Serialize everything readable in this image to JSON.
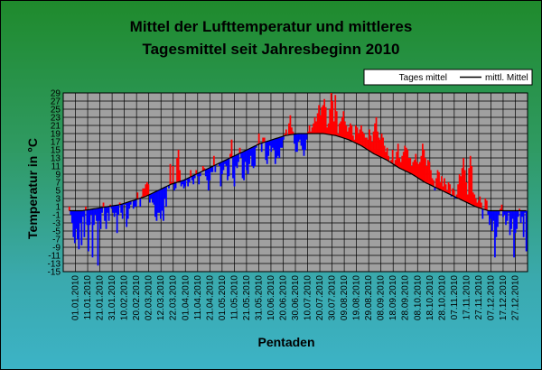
{
  "chart_data": {
    "type": "bar",
    "title_line1": "Mittel der Lufttemperatur und mittleres",
    "title_line2": "Tagesmittel seit Jahresbeginn 2010",
    "xlabel": "Pentaden",
    "ylabel": "Temperatur in °C",
    "ylim": [
      -15,
      29
    ],
    "yticks": [
      -15,
      -13,
      -11,
      -9,
      -7,
      -5,
      -3,
      -1,
      1,
      3,
      5,
      7,
      9,
      11,
      13,
      15,
      17,
      19,
      21,
      23,
      25,
      27,
      29
    ],
    "grid": true,
    "legend_position": "top-right",
    "legend": {
      "series_label": "Tages mittel",
      "mean_label": "mittl. Mittel"
    },
    "colors": {
      "plot_bg": "#a0a0a0",
      "above_mean": "#ff0000",
      "below_mean": "#0000ff",
      "mean_line": "#000000",
      "grid": "#000000"
    },
    "x_tick_labels": [
      "01.01.2010",
      "11.01.2010",
      "21.01.2010",
      "31.01.2010",
      "10.02.2010",
      "20.02.2010",
      "02.03.2010",
      "12.03.2010",
      "22.03.2010",
      "01.04.2010",
      "11.04.2010",
      "21.04.2010",
      "01.05.2010",
      "11.05.2010",
      "21.05.2010",
      "31.05.2010",
      "10.06.2010",
      "20.06.2010",
      "30.06.2010",
      "10.07.2010",
      "20.07.2010",
      "30.07.2010",
      "09.08.2010",
      "19.08.2010",
      "29.08.2010",
      "08.09.2010",
      "18.09.2010",
      "28.09.2010",
      "08.10.2010",
      "18.10.2010",
      "28.10.2010",
      "07.11.2010",
      "17.11.2010",
      "27.11.2010",
      "07.12.2010",
      "17.12.2010",
      "27.12.2010"
    ],
    "mean_curve": [
      0.0,
      0.0,
      0.5,
      1.0,
      1.5,
      2.5,
      3.5,
      5.0,
      6.5,
      7.5,
      9.0,
      10.5,
      12.0,
      13.5,
      15.0,
      16.5,
      17.5,
      18.5,
      19.0,
      19.0,
      19.0,
      18.5,
      17.5,
      16.0,
      14.0,
      12.5,
      10.5,
      9.0,
      7.0,
      5.5,
      4.0,
      2.5,
      1.0,
      0.0,
      0.0,
      0.0,
      0.0
    ],
    "daily_values": [
      1.0,
      -1.0,
      -3.0,
      -6.5,
      -8.0,
      -4.5,
      -7.0,
      -9.5,
      -3.0,
      -8.5,
      -1.5,
      -6.5,
      1.0,
      -3.5,
      -10.0,
      -3.5,
      -1.0,
      -11.5,
      -3.5,
      -1.0,
      -2.5,
      -13.5,
      -2.5,
      -4.5,
      -0.5,
      2.0,
      -2.5,
      -4.5,
      -0.5,
      -2.5,
      1.5,
      0.5,
      -0.5,
      -1.5,
      -0.5,
      -5.5,
      -1.0,
      2.0,
      -0.5,
      -2.0,
      1.5,
      1.5,
      -4.0,
      -2.0,
      0.5,
      1.5,
      2.5,
      0.5,
      1.0,
      1.0,
      4.5,
      3.0,
      1.0,
      3.5,
      5.5,
      5.5,
      6.5,
      7.0,
      6.5,
      2.0,
      3.0,
      2.0,
      1.5,
      -1.5,
      -2.5,
      -0.5,
      -0.5,
      -2.0,
      0.0,
      -2.5,
      3.0,
      1.0,
      6.0,
      5.5,
      11.5,
      7.0,
      11.0,
      5.0,
      5.5,
      13.0,
      15.0,
      10.0,
      6.0,
      6.5,
      5.5,
      6.0,
      7.5,
      6.0,
      7.0,
      10.0,
      7.5,
      6.5,
      8.0,
      10.0,
      8.5,
      6.5,
      8.5,
      9.5,
      11.0,
      10.5,
      8.5,
      7.5,
      5.0,
      7.5,
      9.5,
      9.5,
      13.5,
      9.5,
      11.5,
      11.5,
      11.0,
      6.0,
      9.0,
      10.0,
      11.5,
      11.0,
      7.5,
      8.5,
      14.0,
      17.5,
      8.0,
      6.0,
      11.0,
      10.5,
      12.0,
      15.5,
      13.0,
      8.0,
      7.5,
      12.0,
      10.0,
      9.0,
      11.5,
      13.5,
      11.0,
      10.5,
      11.0,
      15.5,
      16.5,
      19.0,
      16.5,
      14.5,
      18.0,
      18.0,
      12.5,
      11.5,
      13.5,
      16.0,
      14.5,
      15.5,
      15.0,
      11.5,
      13.0,
      13.5,
      13.0,
      15.5,
      15.5,
      17.5,
      19.0,
      20.0,
      18.5,
      21.5,
      23.5,
      20.5,
      19.5,
      16.5,
      14.5,
      14.5,
      17.0,
      17.5,
      16.0,
      15.0,
      13.5,
      15.0,
      17.5,
      19.5,
      21.0,
      19.5,
      20.5,
      21.5,
      23.0,
      22.0,
      24.0,
      26.0,
      23.5,
      25.5,
      26.0,
      27.5,
      25.5,
      20.5,
      21.5,
      25.0,
      29.0,
      27.0,
      22.0,
      28.5,
      24.5,
      19.0,
      21.5,
      22.0,
      23.0,
      24.5,
      22.0,
      21.0,
      19.5,
      20.5,
      21.5,
      21.0,
      18.5,
      17.5,
      21.0,
      20.5,
      19.0,
      20.0,
      21.0,
      19.5,
      19.0,
      18.0,
      18.0,
      17.5,
      20.0,
      18.5,
      17.0,
      19.5,
      21.5,
      23.0,
      19.5,
      18.0,
      17.5,
      19.0,
      18.0,
      16.0,
      14.5,
      15.5,
      13.5,
      12.0,
      12.5,
      15.0,
      11.5,
      12.5,
      14.5,
      16.5,
      13.0,
      12.0,
      13.5,
      14.5,
      16.0,
      15.5,
      15.0,
      13.0,
      13.0,
      11.0,
      12.0,
      12.5,
      14.0,
      12.0,
      11.5,
      12.0,
      13.5,
      16.5,
      15.0,
      13.0,
      11.0,
      12.5,
      12.0,
      10.0,
      8.0,
      7.5,
      5.0,
      8.0,
      10.0,
      9.5,
      7.0,
      8.5,
      6.0,
      8.0,
      6.5,
      5.0,
      7.0,
      6.5,
      3.5,
      5.5,
      5.0,
      3.0,
      4.0,
      6.5,
      9.0,
      8.5,
      10.5,
      13.0,
      10.0,
      7.0,
      4.0,
      10.5,
      13.5,
      11.0,
      4.5,
      4.0,
      3.0,
      2.0,
      2.5,
      3.5,
      2.0,
      -2.0,
      0.5,
      3.0,
      2.5,
      -1.0,
      -3.5,
      -2.0,
      -5.0,
      -2.5,
      -11.5,
      -6.5,
      -4.0,
      -1.0,
      0.5,
      1.5,
      -1.5,
      -1.0,
      -3.5,
      -2.5,
      -0.5,
      -6.0,
      -4.5,
      -2.0,
      -11.5,
      -5.5,
      -4.5,
      -1.5,
      0.5,
      -3.0,
      -1.5,
      -6.5,
      -0.5,
      -10.0
    ]
  }
}
